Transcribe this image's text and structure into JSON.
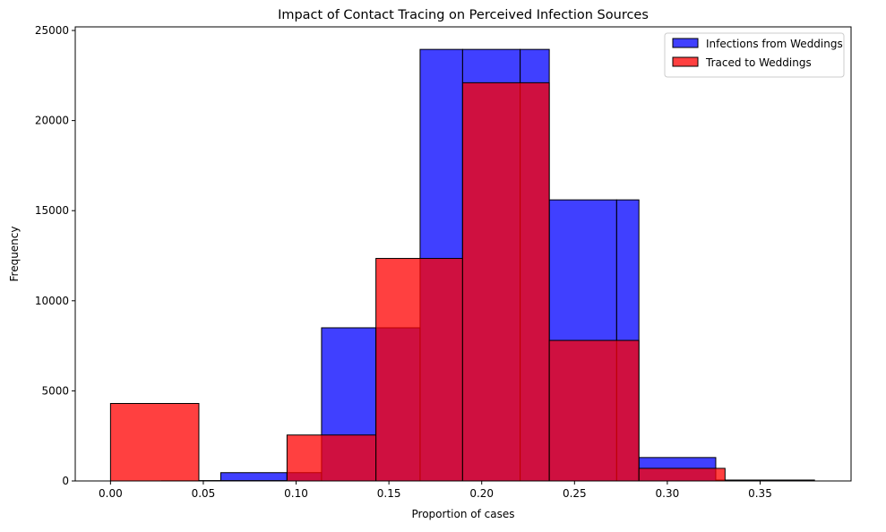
{
  "chart_data": {
    "type": "histogram",
    "title": "Impact of Contact Tracing on Perceived Infection Sources",
    "xlabel": "Proportion of cases",
    "ylabel": "Frequency",
    "xlim": [
      -0.019,
      0.399
    ],
    "ylim": [
      0,
      25200
    ],
    "xticks": [
      0.0,
      0.05,
      0.1,
      0.15,
      0.2,
      0.25,
      0.3,
      0.35
    ],
    "xtick_labels": [
      "0.00",
      "0.05",
      "0.10",
      "0.15",
      "0.20",
      "0.25",
      "0.30",
      "0.35"
    ],
    "yticks": [
      0,
      5000,
      10000,
      15000,
      20000,
      25000
    ],
    "ytick_labels": [
      "0",
      "5000",
      "10000",
      "15000",
      "20000",
      "25000"
    ],
    "grid": false,
    "legend_position": "upper right",
    "series": [
      {
        "name": "Infections from Weddings",
        "color": "#0000ff",
        "alpha": 0.75,
        "bins": [
          {
            "x0": 0.0275,
            "x1": 0.0594,
            "count": 10
          },
          {
            "x0": 0.0594,
            "x1": 0.0951,
            "count": 460
          },
          {
            "x0": 0.0951,
            "x1": 0.1137,
            "count": 460
          },
          {
            "x0": 0.1137,
            "x1": 0.143,
            "count": 8500
          },
          {
            "x0": 0.143,
            "x1": 0.1668,
            "count": 8500
          },
          {
            "x0": 0.1668,
            "x1": 0.1897,
            "count": 23950
          },
          {
            "x0": 0.1897,
            "x1": 0.2207,
            "count": 23950
          },
          {
            "x0": 0.2207,
            "x1": 0.2364,
            "count": 23950
          },
          {
            "x0": 0.2364,
            "x1": 0.2727,
            "count": 15600
          },
          {
            "x0": 0.2727,
            "x1": 0.2847,
            "count": 15600
          },
          {
            "x0": 0.2847,
            "x1": 0.3261,
            "count": 1300
          },
          {
            "x0": 0.3261,
            "x1": 0.3311,
            "count": 50
          },
          {
            "x0": 0.3311,
            "x1": 0.3793,
            "count": 50
          }
        ]
      },
      {
        "name": "Traced to Weddings",
        "color": "#ff0000",
        "alpha": 0.75,
        "bins": [
          {
            "x0": 0.0,
            "x1": 0.0476,
            "count": 4300
          },
          {
            "x0": 0.0476,
            "x1": 0.0951,
            "count": 20
          },
          {
            "x0": 0.0951,
            "x1": 0.143,
            "count": 2550
          },
          {
            "x0": 0.143,
            "x1": 0.1897,
            "count": 12350
          },
          {
            "x0": 0.1897,
            "x1": 0.2364,
            "count": 22100
          },
          {
            "x0": 0.2364,
            "x1": 0.2847,
            "count": 7800
          },
          {
            "x0": 0.2847,
            "x1": 0.3311,
            "count": 700
          }
        ]
      }
    ]
  }
}
